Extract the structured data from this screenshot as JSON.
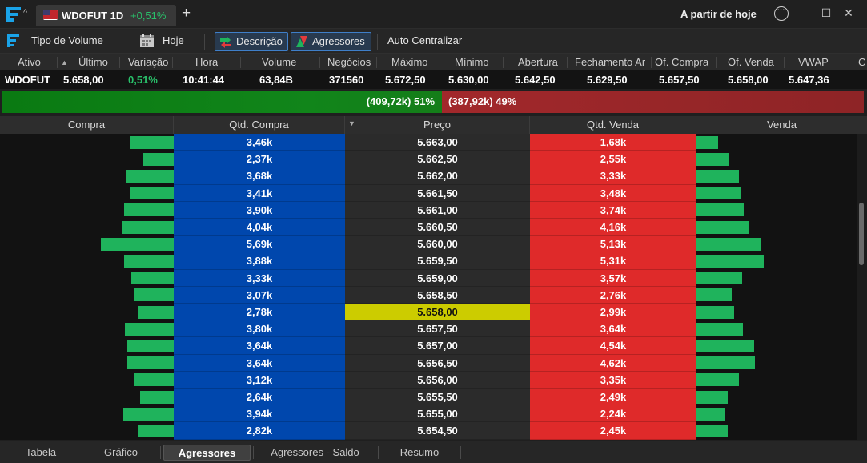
{
  "titlebar": {
    "tab_name": "WDOFUT 1D",
    "tab_change": "+0,51%",
    "new_tab": "+",
    "date_filter": "A partir de hoje",
    "minimize": "–",
    "maximize": "☐",
    "close": "✕"
  },
  "toolbar": {
    "volume_type": "Tipo de Volume",
    "today": "Hoje",
    "description": "Descrição",
    "aggressors": "Agressores",
    "auto_center": "Auto Centralizar"
  },
  "quote": {
    "headers": [
      "Ativo",
      "Último",
      "Variação",
      "Hora",
      "Volume",
      "Negócios",
      "Máximo",
      "Mínimo",
      "Abertura",
      "Fechamento Ar",
      "Of. Compra",
      "Of. Venda",
      "VWAP",
      "C"
    ],
    "values": [
      "WDOFUT",
      "5.658,00",
      "0,51%",
      "10:41:44",
      "63,84B",
      "371560",
      "5.672,50",
      "5.630,00",
      "5.642,50",
      "5.629,50",
      "5.657,50",
      "5.658,00",
      "5.647,36",
      ""
    ],
    "up_color": "#29c06a"
  },
  "balance": {
    "buy_label": "(409,72k) 51%",
    "sell_label": "(387,92k) 49%",
    "buy_fraction": 0.51,
    "buy_color": "#11851a",
    "sell_color": "#a2282b"
  },
  "book_headers": {
    "buy": "Compra",
    "buy_qty": "Qtd. Compra",
    "price": "Preço",
    "sell_qty": "Qtd. Venda",
    "sell": "Venda"
  },
  "book": [
    {
      "buy_qty": "3,46k",
      "price": "5.663,00",
      "sell_qty": "1,68k",
      "buy_val": 3.46,
      "sell_val": 1.68
    },
    {
      "buy_qty": "2,37k",
      "price": "5.662,50",
      "sell_qty": "2,55k",
      "buy_val": 2.37,
      "sell_val": 2.55
    },
    {
      "buy_qty": "3,68k",
      "price": "5.662,00",
      "sell_qty": "3,33k",
      "buy_val": 3.68,
      "sell_val": 3.33
    },
    {
      "buy_qty": "3,41k",
      "price": "5.661,50",
      "sell_qty": "3,48k",
      "buy_val": 3.41,
      "sell_val": 3.48
    },
    {
      "buy_qty": "3,90k",
      "price": "5.661,00",
      "sell_qty": "3,74k",
      "buy_val": 3.9,
      "sell_val": 3.74
    },
    {
      "buy_qty": "4,04k",
      "price": "5.660,50",
      "sell_qty": "4,16k",
      "buy_val": 4.04,
      "sell_val": 4.16
    },
    {
      "buy_qty": "5,69k",
      "price": "5.660,00",
      "sell_qty": "5,13k",
      "buy_val": 5.69,
      "sell_val": 5.13
    },
    {
      "buy_qty": "3,88k",
      "price": "5.659,50",
      "sell_qty": "5,31k",
      "buy_val": 3.88,
      "sell_val": 5.31
    },
    {
      "buy_qty": "3,33k",
      "price": "5.659,00",
      "sell_qty": "3,57k",
      "buy_val": 3.33,
      "sell_val": 3.57
    },
    {
      "buy_qty": "3,07k",
      "price": "5.658,50",
      "sell_qty": "2,76k",
      "buy_val": 3.07,
      "sell_val": 2.76
    },
    {
      "buy_qty": "2,78k",
      "price": "5.658,00",
      "sell_qty": "2,99k",
      "buy_val": 2.78,
      "sell_val": 2.99,
      "current": true
    },
    {
      "buy_qty": "3,80k",
      "price": "5.657,50",
      "sell_qty": "3,64k",
      "buy_val": 3.8,
      "sell_val": 3.64
    },
    {
      "buy_qty": "3,64k",
      "price": "5.657,00",
      "sell_qty": "4,54k",
      "buy_val": 3.64,
      "sell_val": 4.54
    },
    {
      "buy_qty": "3,64k",
      "price": "5.656,50",
      "sell_qty": "4,62k",
      "buy_val": 3.64,
      "sell_val": 4.62
    },
    {
      "buy_qty": "3,12k",
      "price": "5.656,00",
      "sell_qty": "3,35k",
      "buy_val": 3.12,
      "sell_val": 3.35
    },
    {
      "buy_qty": "2,64k",
      "price": "5.655,50",
      "sell_qty": "2,49k",
      "buy_val": 2.64,
      "sell_val": 2.49
    },
    {
      "buy_qty": "3,94k",
      "price": "5.655,00",
      "sell_qty": "2,24k",
      "buy_val": 3.94,
      "sell_val": 2.24
    },
    {
      "buy_qty": "2,82k",
      "price": "5.654,50",
      "sell_qty": "2,45k",
      "buy_val": 2.82,
      "sell_val": 2.45
    }
  ],
  "bottom_tabs": [
    "Tabela",
    "Gráfico",
    "Agressores",
    "Agressores - Saldo",
    "Resumo"
  ],
  "active_tab": "Agressores",
  "icons": {
    "logo": "bar-logo-icon",
    "volume_type": "volume-bars-icon",
    "calendar": "calendar-icon",
    "description": "arrows-icon",
    "aggressors": "triangles-icon"
  }
}
